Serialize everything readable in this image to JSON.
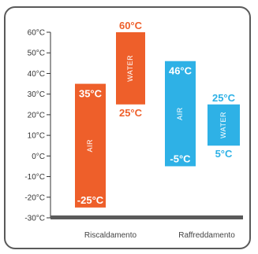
{
  "colors": {
    "heating": "#ee5f2a",
    "cooling": "#2eb1e6",
    "axis": "#333333",
    "baseline": "#5a5a5a"
  },
  "chart_data": {
    "type": "bar",
    "subtype": "floating-range",
    "ylim": [
      -30,
      60
    ],
    "y_ticks": [
      {
        "value": 60,
        "label": "60°C"
      },
      {
        "value": 50,
        "label": "50°C"
      },
      {
        "value": 40,
        "label": "40°C"
      },
      {
        "value": 30,
        "label": "30°C"
      },
      {
        "value": 20,
        "label": "20°C"
      },
      {
        "value": 10,
        "label": "10°C"
      },
      {
        "value": 0,
        "label": "0°C"
      },
      {
        "value": -10,
        "label": "-10°C"
      },
      {
        "value": -20,
        "label": "-20°C"
      },
      {
        "value": -30,
        "label": "-30°C"
      }
    ],
    "categories": [
      "Riscaldamento",
      "Raffreddamento"
    ],
    "bars": [
      {
        "group": 0,
        "name": "AIR",
        "min": -25,
        "max": 35,
        "min_label": "-25°C",
        "max_label": "35°C",
        "color_key": "heating"
      },
      {
        "group": 0,
        "name": "WATER",
        "min": 25,
        "max": 60,
        "min_label": "25°C",
        "max_label": "60°C",
        "color_key": "heating"
      },
      {
        "group": 1,
        "name": "AIR",
        "min": -5,
        "max": 46,
        "min_label": "-5°C",
        "max_label": "46°C",
        "color_key": "cooling"
      },
      {
        "group": 1,
        "name": "WATER",
        "min": 5,
        "max": 25,
        "min_label": "5°C",
        "max_label": "25°C",
        "color_key": "cooling"
      }
    ],
    "grid": false,
    "legend": "none"
  }
}
